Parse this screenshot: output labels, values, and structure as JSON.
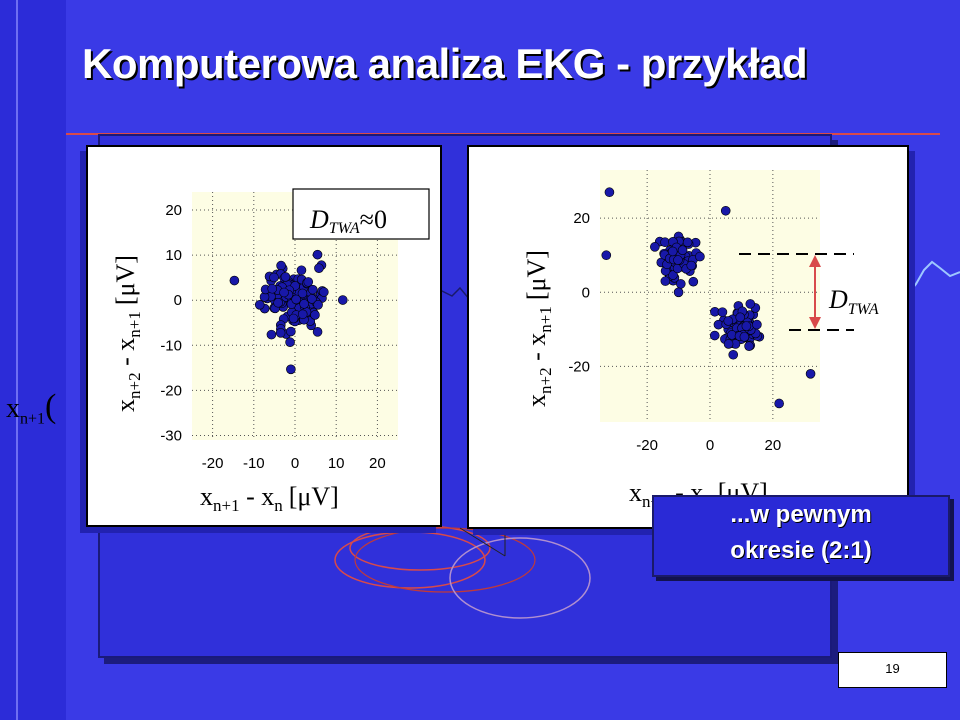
{
  "slide": {
    "title": "Komputerowa analiza EKG - przykład",
    "page_number": "19",
    "left_label_main": "x",
    "left_label_sub": "n+1",
    "left_label_paren": "(",
    "caption_line1": "...w pewnym",
    "caption_line2": "okresie (2:1)"
  },
  "colors": {
    "background": "#3a3ae6",
    "scatter_point": "#1818a8",
    "plot_bg": "#fdfde4",
    "accent_red": "#d84a4a"
  },
  "chart_data": [
    {
      "type": "scatter",
      "annotation": "D_TWA ≈0",
      "annotation_main": "D",
      "annotation_sub": "TWA",
      "annotation_suffix": "≈0",
      "xlabel_main": "x",
      "xlabel_sub1": "n+1",
      "xlabel_mid": " - x",
      "xlabel_sub2": "n",
      "xlabel_unit": "[μV]",
      "ylabel_main": "x",
      "ylabel_sub1": "n+2",
      "ylabel_mid": " - x",
      "ylabel_sub2": "n+1",
      "ylabel_unit": "[μV]",
      "x_ticks": [
        "-20",
        "-10",
        "0",
        "10",
        "20"
      ],
      "y_ticks": [
        "20",
        "10",
        "0",
        "-10",
        "-20",
        "-30"
      ],
      "xlim": [
        -25,
        25
      ],
      "ylim": [
        -31,
        24
      ],
      "grid": true,
      "clusters": [
        {
          "center": [
            0,
            0
          ],
          "spread": [
            5,
            5
          ],
          "count": 120
        }
      ]
    },
    {
      "type": "scatter",
      "annotation_main": "D",
      "annotation_sub": "TWA",
      "xlabel_main": "x",
      "xlabel_sub1": "n+1",
      "xlabel_mid": " - x",
      "xlabel_sub2": "n",
      "xlabel_unit": "[μV]",
      "ylabel_main": "x",
      "ylabel_sub1": "n+2",
      "ylabel_mid": " - x",
      "ylabel_sub2": "n+1",
      "ylabel_unit": "[μV]",
      "x_ticks": [
        "-20",
        "0",
        "20"
      ],
      "y_ticks": [
        "20",
        "0",
        "-20"
      ],
      "xlim": [
        -35,
        35
      ],
      "ylim": [
        -35,
        33
      ],
      "grid": true,
      "clusters": [
        {
          "center": [
            -10,
            9
          ],
          "spread": [
            5,
            4
          ],
          "count": 70
        },
        {
          "center": [
            10,
            -10
          ],
          "spread": [
            5,
            4
          ],
          "count": 70
        }
      ],
      "outliers": [
        [
          -32,
          27
        ],
        [
          -33,
          10
        ],
        [
          32,
          -22
        ],
        [
          -10,
          0
        ],
        [
          5,
          22
        ],
        [
          22,
          -30
        ]
      ]
    }
  ]
}
